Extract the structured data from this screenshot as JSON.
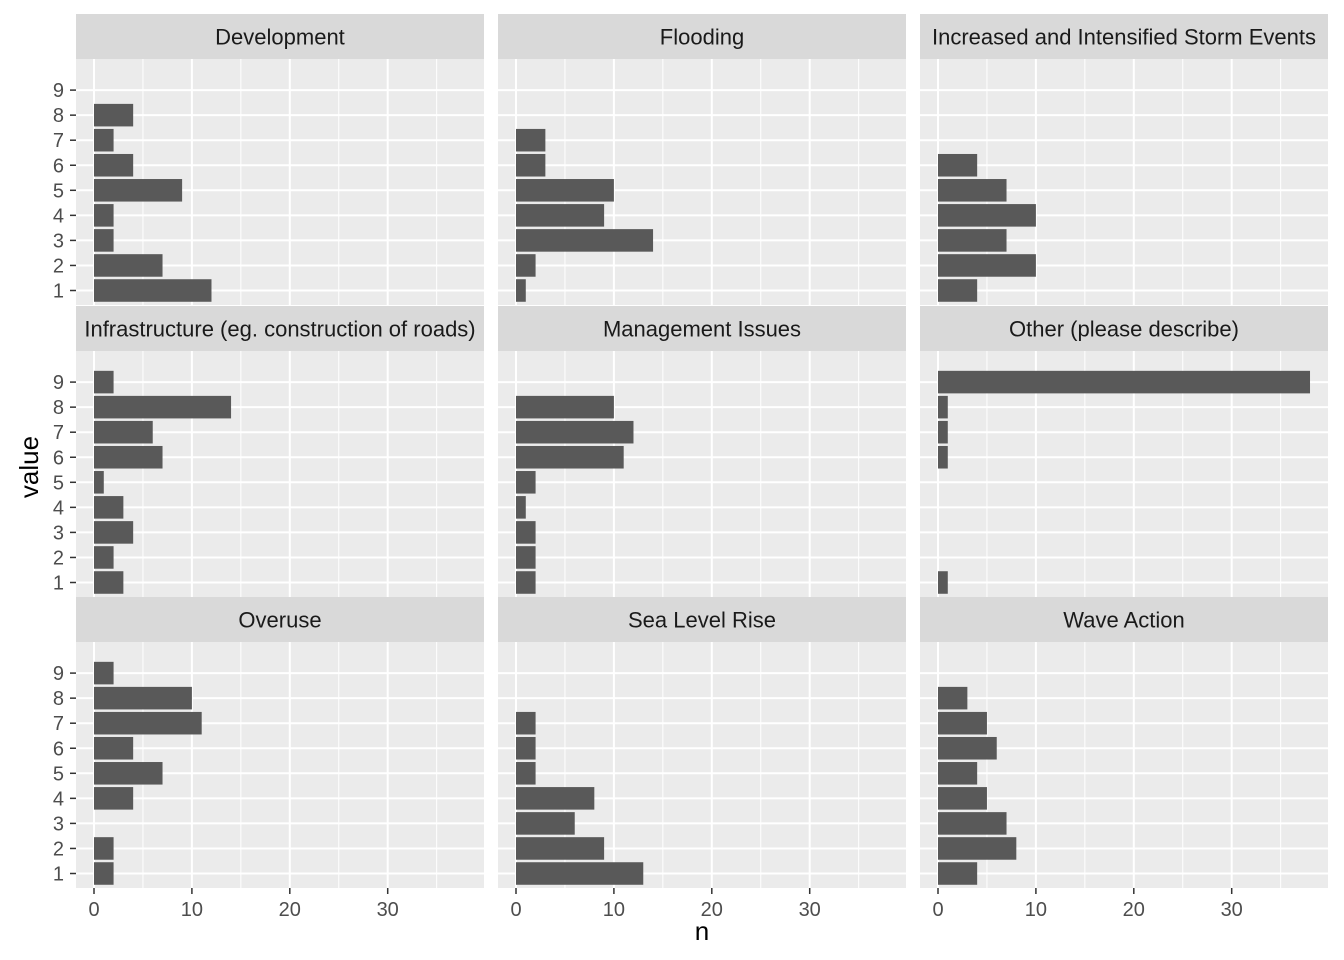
{
  "chart_data": {
    "type": "bar",
    "orientation": "horizontal",
    "layout": "facet-grid 3x3",
    "xlabel": "n",
    "ylabel": "value",
    "xlim": [
      0,
      38
    ],
    "xticks": [
      0,
      10,
      20,
      30
    ],
    "yticks": [
      1,
      2,
      3,
      4,
      5,
      6,
      7,
      8,
      9
    ],
    "grid": true,
    "colors": {
      "bar": "#595959",
      "panel": "#ebebeb",
      "strip": "#d9d9d9",
      "grid": "#ffffff"
    },
    "facets": [
      {
        "name": "Development",
        "values": [
          12,
          7,
          2,
          2,
          9,
          4,
          2,
          4,
          0
        ]
      },
      {
        "name": "Flooding",
        "values": [
          1,
          2,
          14,
          9,
          10,
          3,
          3,
          0,
          0
        ]
      },
      {
        "name": "Increased and Intensified Storm Events",
        "values": [
          4,
          10,
          7,
          10,
          7,
          4,
          0,
          0,
          0
        ]
      },
      {
        "name": "Infrastructure (eg. construction of roads)",
        "values": [
          3,
          2,
          4,
          3,
          1,
          7,
          6,
          14,
          2
        ]
      },
      {
        "name": "Management Issues",
        "values": [
          2,
          2,
          2,
          1,
          2,
          11,
          12,
          10,
          0
        ]
      },
      {
        "name": "Other (please describe)",
        "values": [
          1,
          0,
          0,
          0,
          0,
          1,
          1,
          1,
          38
        ]
      },
      {
        "name": "Overuse",
        "values": [
          2,
          2,
          0,
          4,
          7,
          4,
          11,
          10,
          2
        ]
      },
      {
        "name": "Sea Level Rise",
        "values": [
          13,
          9,
          6,
          8,
          2,
          2,
          2,
          0,
          0
        ]
      },
      {
        "name": "Wave Action",
        "values": [
          4,
          8,
          7,
          5,
          4,
          6,
          5,
          3,
          0
        ]
      }
    ]
  }
}
